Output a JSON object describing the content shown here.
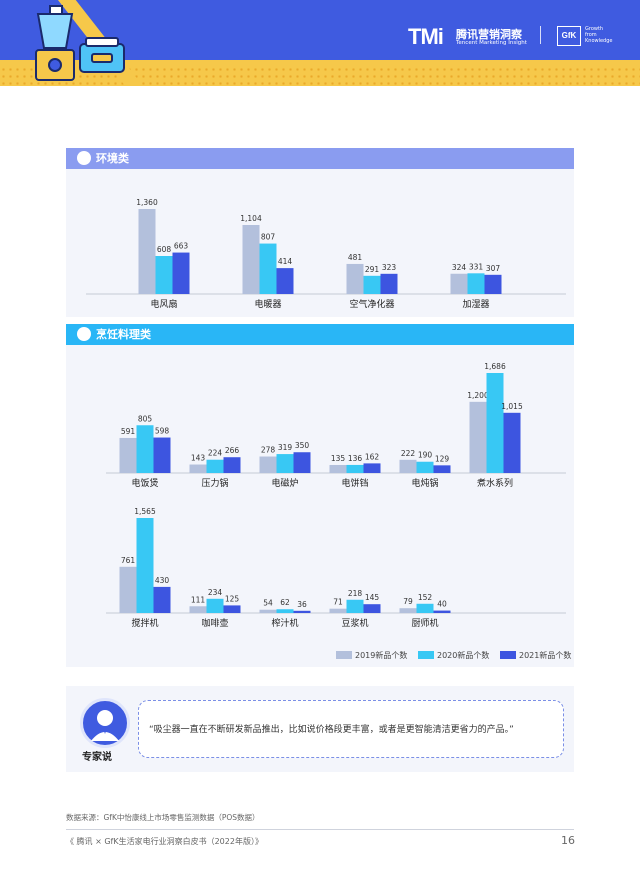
{
  "header": {
    "brand_logo": "TMi",
    "brand_cn": "腾讯营销洞察",
    "brand_en": "Tencent Marketing Insight",
    "partner_logo": "GfK",
    "partner_tagline": [
      "Growth",
      "from",
      "Knowledge"
    ],
    "colors": {
      "primary": "#3f5be0",
      "accent": "#f6c84a"
    }
  },
  "sections": [
    {
      "title": "环境类",
      "icon": "fan-icon",
      "bar_color": "#8a9cf0"
    },
    {
      "title": "烹饪料理类",
      "icon": "cooking-icon",
      "bar_color": "#29b6f6"
    }
  ],
  "legend": [
    {
      "label": "2019新品个数",
      "color": "#b3c0dc"
    },
    {
      "label": "2020新品个数",
      "color": "#38c8f4"
    },
    {
      "label": "2021新品个数",
      "color": "#3d55e0"
    }
  ],
  "chart_data": [
    {
      "type": "bar",
      "title": "环境类",
      "categories": [
        "电风扇",
        "电暖器",
        "空气净化器",
        "加湿器"
      ],
      "series": [
        {
          "name": "2019新品个数",
          "values": [
            1360,
            1104,
            481,
            324
          ]
        },
        {
          "name": "2020新品个数",
          "values": [
            608,
            807,
            291,
            331
          ]
        },
        {
          "name": "2021新品个数",
          "values": [
            663,
            414,
            323,
            307
          ]
        }
      ],
      "data_labels": [
        [
          "1,360",
          "608",
          "663"
        ],
        [
          "1,104",
          "807",
          "414"
        ],
        [
          "481",
          "291",
          "323"
        ],
        [
          "324",
          "331",
          "307"
        ]
      ],
      "ylim": [
        0,
        1500
      ]
    },
    {
      "type": "bar",
      "title": "烹饪料理类",
      "categories": [
        "电饭煲",
        "压力锅",
        "电磁炉",
        "电饼铛",
        "电炖锅",
        "煮水系列"
      ],
      "series": [
        {
          "name": "2019新品个数",
          "values": [
            591,
            143,
            278,
            135,
            222,
            1200
          ]
        },
        {
          "name": "2020新品个数",
          "values": [
            805,
            224,
            319,
            136,
            190,
            1686
          ]
        },
        {
          "name": "2021新品个数",
          "values": [
            598,
            266,
            350,
            162,
            129,
            1015
          ]
        }
      ],
      "data_labels": [
        [
          "591",
          "805",
          "598"
        ],
        [
          "143",
          "224",
          "266"
        ],
        [
          "278",
          "319",
          "350"
        ],
        [
          "135",
          "136",
          "162"
        ],
        [
          "222",
          "190",
          "129"
        ],
        [
          "1,200",
          "1,686",
          "1,015"
        ]
      ],
      "ylim": [
        0,
        1750
      ]
    },
    {
      "type": "bar",
      "title": "",
      "categories": [
        "搅拌机",
        "咖啡壶",
        "榨汁机",
        "豆浆机",
        "厨师机"
      ],
      "series": [
        {
          "name": "2019新品个数",
          "values": [
            761,
            111,
            54,
            71,
            79
          ]
        },
        {
          "name": "2020新品个数",
          "values": [
            1565,
            234,
            62,
            218,
            152
          ]
        },
        {
          "name": "2021新品个数",
          "values": [
            430,
            125,
            36,
            145,
            40
          ]
        }
      ],
      "data_labels": [
        [
          "761",
          "1,565",
          "430"
        ],
        [
          "111",
          "234",
          "125"
        ],
        [
          "54",
          "62",
          "36"
        ],
        [
          "71",
          "218",
          "145"
        ],
        [
          "79",
          "152",
          "40"
        ]
      ],
      "ylim": [
        0,
        1750
      ]
    }
  ],
  "expert": {
    "label": "专家说",
    "quote": "“吸尘器一直在不断研发新品推出，比如说价格段更丰富，或者是更智能清洁更省力的产品。”"
  },
  "source": "数据来源：GfK中怡康线上市场零售监测数据（POS数据）",
  "footer": {
    "title": "《 腾讯 × GfK生活家电行业洞察白皮书（2022年版）》",
    "page_number": "16"
  }
}
